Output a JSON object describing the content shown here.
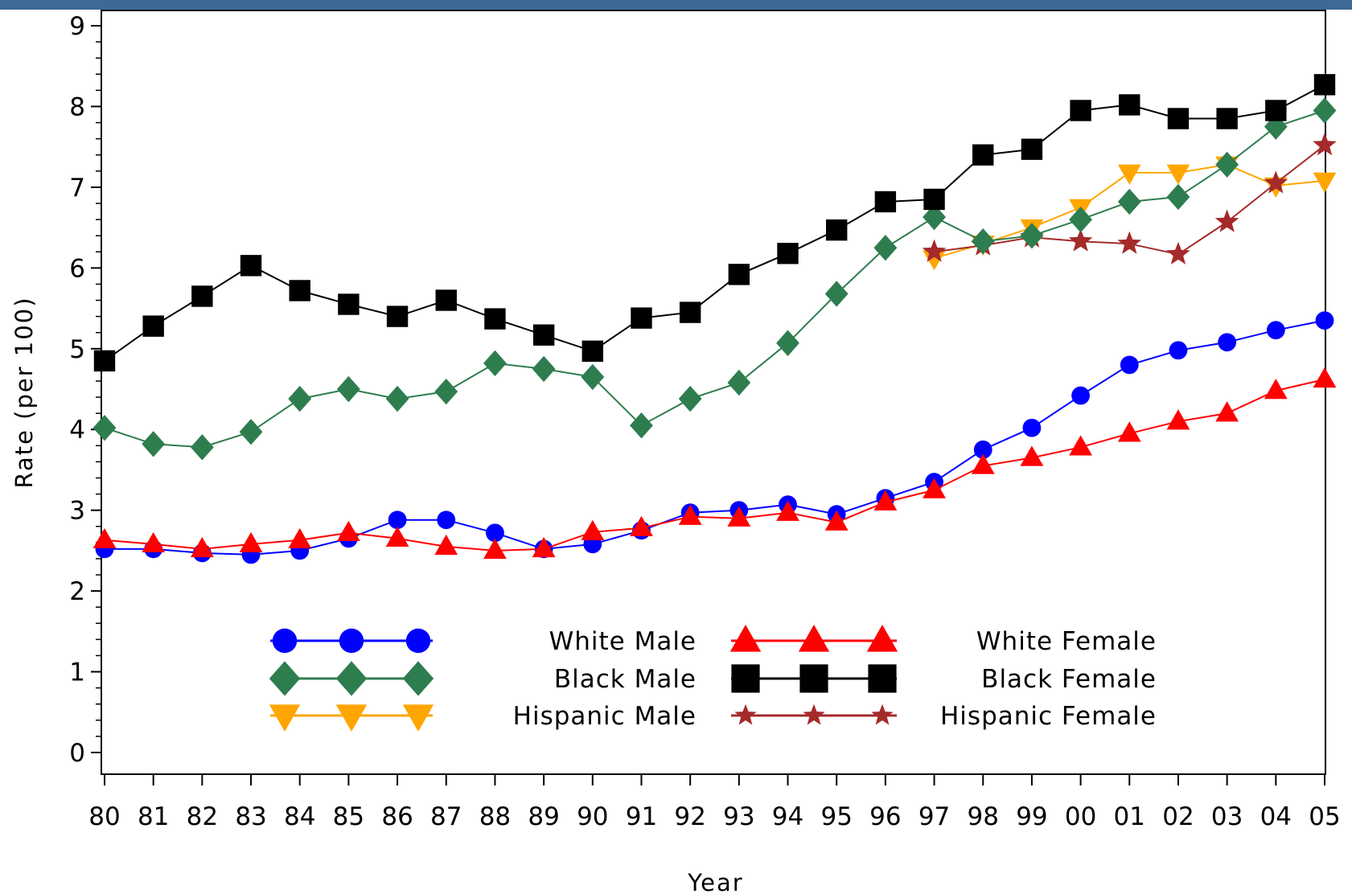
{
  "chart_data": {
    "type": "line",
    "title": "",
    "xlabel": "Year",
    "ylabel": "Rate (per 100)",
    "x": [
      "80",
      "81",
      "82",
      "83",
      "84",
      "85",
      "86",
      "87",
      "88",
      "89",
      "90",
      "91",
      "92",
      "93",
      "94",
      "95",
      "96",
      "97",
      "98",
      "99",
      "00",
      "01",
      "02",
      "03",
      "04",
      "05"
    ],
    "ylim": [
      0,
      9
    ],
    "yticks": [
      "0",
      "1",
      "2",
      "3",
      "4",
      "5",
      "6",
      "7",
      "8",
      "9"
    ],
    "grid": false,
    "legend_position": "bottom-center",
    "series": [
      {
        "name": "White Male",
        "color": "#0000ff",
        "marker": "circle",
        "values": [
          2.52,
          2.52,
          2.47,
          2.45,
          2.5,
          2.65,
          2.88,
          2.88,
          2.72,
          2.52,
          2.58,
          2.75,
          2.97,
          3.0,
          3.07,
          2.95,
          3.15,
          3.35,
          3.75,
          4.02,
          4.42,
          4.8,
          4.98,
          5.08,
          5.23,
          5.35
        ]
      },
      {
        "name": "White Female",
        "color": "#ff0000",
        "marker": "triangle-up",
        "values": [
          2.63,
          2.58,
          2.52,
          2.58,
          2.63,
          2.72,
          2.65,
          2.55,
          2.5,
          2.52,
          2.73,
          2.78,
          2.92,
          2.9,
          2.97,
          2.85,
          3.1,
          3.25,
          3.55,
          3.65,
          3.78,
          3.95,
          4.1,
          4.2,
          4.48,
          4.62
        ]
      },
      {
        "name": "Black Male",
        "color": "#2e7d4f",
        "marker": "diamond",
        "values": [
          4.02,
          3.82,
          3.78,
          3.97,
          4.38,
          4.5,
          4.38,
          4.47,
          4.82,
          4.75,
          4.65,
          4.05,
          4.38,
          4.58,
          5.07,
          5.68,
          6.25,
          6.63,
          6.33,
          6.4,
          6.6,
          6.82,
          6.88,
          7.28,
          7.75,
          7.95
        ]
      },
      {
        "name": "Black Female",
        "color": "#000000",
        "marker": "square",
        "values": [
          4.85,
          5.28,
          5.65,
          6.03,
          5.72,
          5.55,
          5.4,
          5.6,
          5.37,
          5.17,
          4.97,
          5.38,
          5.45,
          5.92,
          6.18,
          6.47,
          6.82,
          6.85,
          7.4,
          7.47,
          7.95,
          8.02,
          7.85,
          7.85,
          7.95,
          8.27
        ]
      },
      {
        "name": "Hispanic Male",
        "color": "#ffa500",
        "marker": "triangle-down",
        "values": [
          null,
          null,
          null,
          null,
          null,
          null,
          null,
          null,
          null,
          null,
          null,
          null,
          null,
          null,
          null,
          null,
          null,
          6.12,
          6.3,
          6.5,
          6.75,
          7.18,
          7.18,
          7.28,
          7.02,
          7.08
        ]
      },
      {
        "name": "Hispanic Female",
        "color": "#a52a2a",
        "marker": "star",
        "values": [
          null,
          null,
          null,
          null,
          null,
          null,
          null,
          null,
          null,
          null,
          null,
          null,
          null,
          null,
          null,
          null,
          null,
          6.2,
          6.28,
          6.38,
          6.33,
          6.3,
          6.17,
          6.57,
          7.05,
          7.52
        ]
      }
    ]
  }
}
